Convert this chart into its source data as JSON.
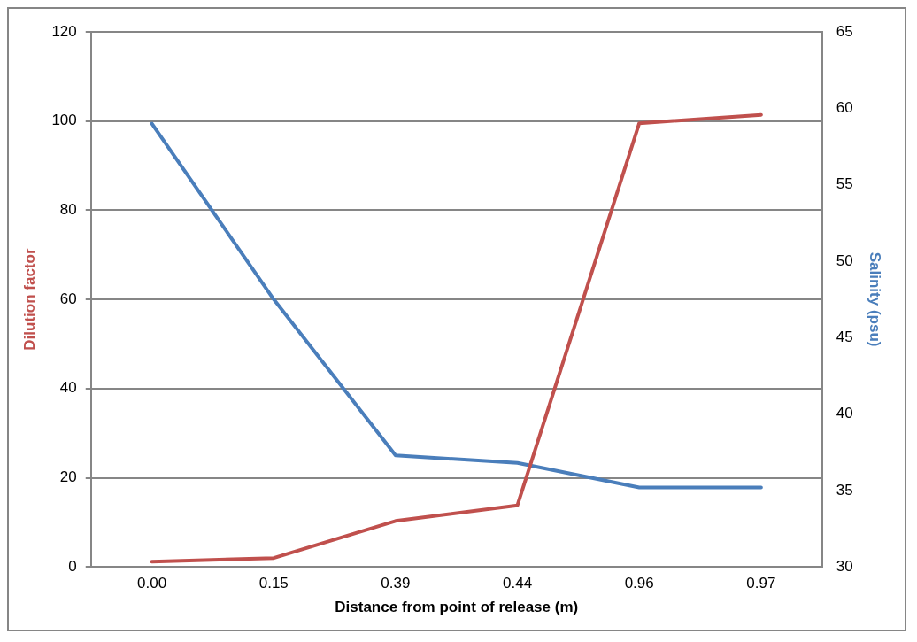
{
  "chart_data": {
    "type": "line",
    "xlabel": "Distance from point of release (m)",
    "ylabel": "Dilution factor",
    "y2label": "Salinity (psu)",
    "categories": [
      "0.00",
      "0.15",
      "0.39",
      "0.44",
      "0.96",
      "0.97"
    ],
    "series": [
      {
        "color": "#c0504d",
        "values": [
          1.2,
          2,
          10.3,
          13.8,
          99.5,
          101.4
        ]
      },
      {
        "color": "#4a7ebb",
        "axis": "y2",
        "values": [
          59,
          47.5,
          37.3,
          36.8,
          35.2,
          35.2
        ]
      }
    ],
    "ylim": [
      0,
      120
    ],
    "yticks": [
      0,
      20,
      40,
      60,
      80,
      100,
      120
    ],
    "y2lim": [
      30,
      65
    ],
    "y2ticks": [
      30,
      35,
      40,
      45,
      50,
      55,
      60,
      65
    ],
    "grid": "y",
    "legend": false,
    "marker": "none",
    "line_style": "solid"
  }
}
